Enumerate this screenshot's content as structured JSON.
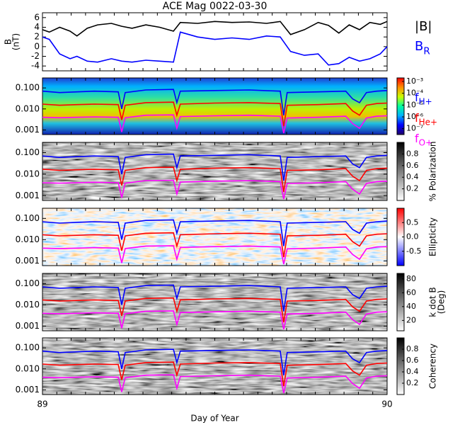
{
  "chart_data": [
    {
      "type": "line",
      "title": "ACE Mag 0022-03-30",
      "ylabel": [
        "B",
        "(nT)"
      ],
      "xlim": [
        89,
        90
      ],
      "ylim": [
        -5,
        7
      ],
      "yticks": [
        -4,
        -2,
        0,
        2,
        4,
        6
      ],
      "x": [
        89.0,
        89.02,
        89.05,
        89.08,
        89.1,
        89.13,
        89.16,
        89.2,
        89.23,
        89.26,
        89.3,
        89.34,
        89.38,
        89.4,
        89.45,
        89.5,
        89.55,
        89.6,
        89.65,
        89.69,
        89.72,
        89.76,
        89.8,
        89.83,
        89.86,
        89.89,
        89.92,
        89.95,
        89.98,
        90.0
      ],
      "legend": true,
      "series": [
        {
          "name": "|B|",
          "color": "#000000",
          "values": [
            3.5,
            3.0,
            4.0,
            3.2,
            2.2,
            3.8,
            4.5,
            4.8,
            4.2,
            3.8,
            4.5,
            4.0,
            3.2,
            5.0,
            4.8,
            5.2,
            5.0,
            5.1,
            4.8,
            5.2,
            2.5,
            3.5,
            5.0,
            4.4,
            2.8,
            4.5,
            3.5,
            5.0,
            4.6,
            5.2
          ]
        },
        {
          "name": "B",
          "subscript": "R",
          "color": "#0000ff",
          "values": [
            2.0,
            1.5,
            -1.5,
            -2.5,
            -2.0,
            -3.0,
            -3.2,
            -2.5,
            -3.0,
            -3.2,
            -2.8,
            -3.0,
            -3.2,
            3.0,
            2.0,
            1.5,
            1.8,
            1.5,
            2.2,
            2.0,
            -1.0,
            -1.8,
            -1.5,
            -3.8,
            -3.5,
            -2.2,
            -3.0,
            -2.5,
            -1.5,
            0.0
          ]
        }
      ]
    },
    {
      "type": "spectrogram",
      "ylog": true,
      "xlim": [
        89,
        90
      ],
      "ylim": [
        0.0006,
        0.3
      ],
      "yticks": [
        {
          "value": 0.1,
          "label": "0.100"
        },
        {
          "value": 0.01,
          "label": "0.010"
        },
        {
          "value": 0.001,
          "label": "0.001"
        }
      ],
      "zlim": [
        -7.5,
        -2.7
      ],
      "zticks": [
        {
          "value": -3,
          "label": "10⁻³"
        },
        {
          "value": -4,
          "label": "10⁻⁴"
        },
        {
          "value": -5,
          "label": "10⁻⁵"
        },
        {
          "value": -6,
          "label": "10⁻⁶"
        },
        {
          "value": -7,
          "label": "10⁻⁷"
        }
      ],
      "colormap": [
        "#20006a",
        "#0000ff",
        "#00b0ff",
        "#00ffa0",
        "#c8ff00",
        "#ff9000",
        "#ff0000"
      ],
      "legend": true,
      "x": [
        89.0,
        89.05,
        89.1,
        89.15,
        89.22,
        89.23,
        89.24,
        89.3,
        89.38,
        89.39,
        89.4,
        89.5,
        89.6,
        89.69,
        89.7,
        89.71,
        89.8,
        89.88,
        89.9,
        89.92,
        89.94,
        89.97,
        90.0
      ],
      "series": [
        {
          "name": "f",
          "subscript": "H+",
          "color": "#0000ff",
          "values": [
            0.07,
            0.06,
            0.065,
            0.07,
            0.065,
            0.01,
            0.06,
            0.08,
            0.085,
            0.02,
            0.07,
            0.075,
            0.08,
            0.07,
            0.005,
            0.06,
            0.065,
            0.07,
            0.03,
            0.02,
            0.06,
            0.07,
            0.075
          ]
        },
        {
          "name": "f",
          "subscript": "He+",
          "color": "#ff0000",
          "values": [
            0.017,
            0.015,
            0.016,
            0.017,
            0.016,
            0.003,
            0.015,
            0.02,
            0.021,
            0.005,
            0.017,
            0.019,
            0.02,
            0.018,
            0.0015,
            0.015,
            0.016,
            0.018,
            0.008,
            0.005,
            0.015,
            0.018,
            0.019
          ]
        },
        {
          "name": "f",
          "subscript": "O+",
          "color": "#ff00ff",
          "values": [
            0.004,
            0.0038,
            0.004,
            0.0042,
            0.004,
            0.0008,
            0.0038,
            0.005,
            0.0052,
            0.0012,
            0.0043,
            0.0047,
            0.005,
            0.0045,
            0.0007,
            0.0037,
            0.004,
            0.0045,
            0.002,
            0.0012,
            0.0037,
            0.0045,
            0.0047
          ]
        }
      ]
    },
    {
      "type": "spectrogram",
      "ylog": true,
      "xlim": [
        89,
        90
      ],
      "ylim": [
        0.0006,
        0.3
      ],
      "yticks": [
        {
          "value": 0.1,
          "label": "0.100"
        },
        {
          "value": 0.01,
          "label": "0.010"
        },
        {
          "value": 0.001,
          "label": "0.001"
        }
      ],
      "zlim": [
        0,
        1
      ],
      "zticks": [
        0.2,
        0.4,
        0.6,
        0.8
      ],
      "zlabel": "% Polarization",
      "colormap": [
        "#ffffff",
        "#000000"
      ],
      "x": [
        89.0,
        89.05,
        89.1,
        89.15,
        89.22,
        89.23,
        89.24,
        89.3,
        89.38,
        89.39,
        89.4,
        89.5,
        89.6,
        89.69,
        89.7,
        89.71,
        89.8,
        89.88,
        89.9,
        89.92,
        89.94,
        89.97,
        90.0
      ],
      "series": [
        {
          "color": "#0000ff",
          "values": [
            0.07,
            0.06,
            0.065,
            0.07,
            0.065,
            0.01,
            0.06,
            0.08,
            0.085,
            0.02,
            0.07,
            0.075,
            0.08,
            0.07,
            0.005,
            0.06,
            0.065,
            0.07,
            0.03,
            0.02,
            0.06,
            0.07,
            0.075
          ]
        },
        {
          "color": "#ff0000",
          "values": [
            0.017,
            0.015,
            0.016,
            0.017,
            0.016,
            0.003,
            0.015,
            0.02,
            0.021,
            0.005,
            0.017,
            0.019,
            0.02,
            0.018,
            0.0015,
            0.015,
            0.016,
            0.018,
            0.008,
            0.005,
            0.015,
            0.018,
            0.019
          ]
        },
        {
          "color": "#ff00ff",
          "values": [
            0.004,
            0.0038,
            0.004,
            0.0042,
            0.004,
            0.0008,
            0.0038,
            0.005,
            0.0052,
            0.0012,
            0.0043,
            0.0047,
            0.005,
            0.0045,
            0.0007,
            0.0037,
            0.004,
            0.0045,
            0.002,
            0.0012,
            0.0037,
            0.0045,
            0.0047
          ]
        }
      ]
    },
    {
      "type": "spectrogram",
      "ylog": true,
      "xlim": [
        89,
        90
      ],
      "ylim": [
        0.0006,
        0.3
      ],
      "yticks": [
        {
          "value": 0.1,
          "label": "0.100"
        },
        {
          "value": 0.01,
          "label": "0.010"
        },
        {
          "value": 0.001,
          "label": "0.001"
        }
      ],
      "zlim": [
        -1,
        1
      ],
      "zticks": [
        0.5,
        {
          "value": 0,
          "label": "0.0"
        },
        -0.5
      ],
      "zlabel": "Ellipticity",
      "colormap": [
        "#0000ff",
        "#ffffff",
        "#ff0000"
      ],
      "x": [
        89.0,
        89.05,
        89.1,
        89.15,
        89.22,
        89.23,
        89.24,
        89.3,
        89.38,
        89.39,
        89.4,
        89.5,
        89.6,
        89.69,
        89.7,
        89.71,
        89.8,
        89.88,
        89.9,
        89.92,
        89.94,
        89.97,
        90.0
      ],
      "series": [
        {
          "color": "#0000ff",
          "values": [
            0.07,
            0.06,
            0.065,
            0.07,
            0.065,
            0.01,
            0.06,
            0.08,
            0.085,
            0.02,
            0.07,
            0.075,
            0.08,
            0.07,
            0.005,
            0.06,
            0.065,
            0.07,
            0.03,
            0.02,
            0.06,
            0.07,
            0.075
          ]
        },
        {
          "color": "#ff0000",
          "values": [
            0.017,
            0.015,
            0.016,
            0.017,
            0.016,
            0.003,
            0.015,
            0.02,
            0.021,
            0.005,
            0.017,
            0.019,
            0.02,
            0.018,
            0.0015,
            0.015,
            0.016,
            0.018,
            0.008,
            0.005,
            0.015,
            0.018,
            0.019
          ]
        },
        {
          "color": "#ff00ff",
          "values": [
            0.004,
            0.0038,
            0.004,
            0.0042,
            0.004,
            0.0008,
            0.0038,
            0.005,
            0.0052,
            0.0012,
            0.0043,
            0.0047,
            0.005,
            0.0045,
            0.0007,
            0.0037,
            0.004,
            0.0045,
            0.002,
            0.0012,
            0.0037,
            0.0045,
            0.0047
          ]
        }
      ]
    },
    {
      "type": "spectrogram",
      "ylog": true,
      "xlim": [
        89,
        90
      ],
      "ylim": [
        0.0006,
        0.3
      ],
      "yticks": [
        {
          "value": 0.1,
          "label": "0.100"
        },
        {
          "value": 0.01,
          "label": "0.010"
        },
        {
          "value": 0.001,
          "label": "0.001"
        }
      ],
      "zlim": [
        5,
        88
      ],
      "zticks": [
        20,
        40,
        60,
        80
      ],
      "zlabel": [
        "k dot B",
        "(Deg)"
      ],
      "colormap": [
        "#ffffff",
        "#000000"
      ],
      "x": [
        89.0,
        89.05,
        89.1,
        89.15,
        89.22,
        89.23,
        89.24,
        89.3,
        89.38,
        89.39,
        89.4,
        89.5,
        89.6,
        89.69,
        89.7,
        89.71,
        89.8,
        89.88,
        89.9,
        89.92,
        89.94,
        89.97,
        90.0
      ],
      "series": [
        {
          "color": "#0000ff",
          "values": [
            0.07,
            0.06,
            0.065,
            0.07,
            0.065,
            0.01,
            0.06,
            0.08,
            0.085,
            0.02,
            0.07,
            0.075,
            0.08,
            0.07,
            0.005,
            0.06,
            0.065,
            0.07,
            0.03,
            0.02,
            0.06,
            0.07,
            0.075
          ]
        },
        {
          "color": "#ff0000",
          "values": [
            0.017,
            0.015,
            0.016,
            0.017,
            0.016,
            0.003,
            0.015,
            0.02,
            0.021,
            0.005,
            0.017,
            0.019,
            0.02,
            0.018,
            0.0015,
            0.015,
            0.016,
            0.018,
            0.008,
            0.005,
            0.015,
            0.018,
            0.019
          ]
        },
        {
          "color": "#ff00ff",
          "values": [
            0.004,
            0.0038,
            0.004,
            0.0042,
            0.004,
            0.0008,
            0.0038,
            0.005,
            0.0052,
            0.0012,
            0.0043,
            0.0047,
            0.005,
            0.0045,
            0.0007,
            0.0037,
            0.004,
            0.0045,
            0.002,
            0.0012,
            0.0037,
            0.0045,
            0.0047
          ]
        }
      ]
    },
    {
      "type": "spectrogram",
      "ylog": true,
      "xlim": [
        89,
        90
      ],
      "xticks": [
        89,
        90
      ],
      "xlabel": "Day of Year",
      "ylim": [
        0.0006,
        0.3
      ],
      "yticks": [
        {
          "value": 0.1,
          "label": "0.100"
        },
        {
          "value": 0.01,
          "label": "0.010"
        },
        {
          "value": 0.001,
          "label": "0.001"
        }
      ],
      "zlim": [
        0,
        1
      ],
      "zticks": [
        0.2,
        0.4,
        0.6,
        0.8
      ],
      "zlabel": "Coherency",
      "colormap": [
        "#ffffff",
        "#000000"
      ],
      "x": [
        89.0,
        89.05,
        89.1,
        89.15,
        89.22,
        89.23,
        89.24,
        89.3,
        89.38,
        89.39,
        89.4,
        89.5,
        89.6,
        89.69,
        89.7,
        89.71,
        89.8,
        89.88,
        89.9,
        89.92,
        89.94,
        89.97,
        90.0
      ],
      "series": [
        {
          "color": "#0000ff",
          "values": [
            0.07,
            0.06,
            0.065,
            0.07,
            0.065,
            0.01,
            0.06,
            0.08,
            0.085,
            0.02,
            0.07,
            0.075,
            0.08,
            0.07,
            0.005,
            0.06,
            0.065,
            0.07,
            0.03,
            0.02,
            0.06,
            0.07,
            0.075
          ]
        },
        {
          "color": "#ff0000",
          "values": [
            0.017,
            0.015,
            0.016,
            0.017,
            0.016,
            0.003,
            0.015,
            0.02,
            0.021,
            0.005,
            0.017,
            0.019,
            0.02,
            0.018,
            0.0015,
            0.015,
            0.016,
            0.018,
            0.008,
            0.005,
            0.015,
            0.018,
            0.019
          ]
        },
        {
          "color": "#ff00ff",
          "values": [
            0.004,
            0.0038,
            0.004,
            0.0042,
            0.004,
            0.0008,
            0.0038,
            0.005,
            0.0052,
            0.0012,
            0.0043,
            0.0047,
            0.005,
            0.0045,
            0.0007,
            0.0037,
            0.004,
            0.0045,
            0.002,
            0.0012,
            0.0037,
            0.0045,
            0.0047
          ]
        }
      ]
    }
  ]
}
